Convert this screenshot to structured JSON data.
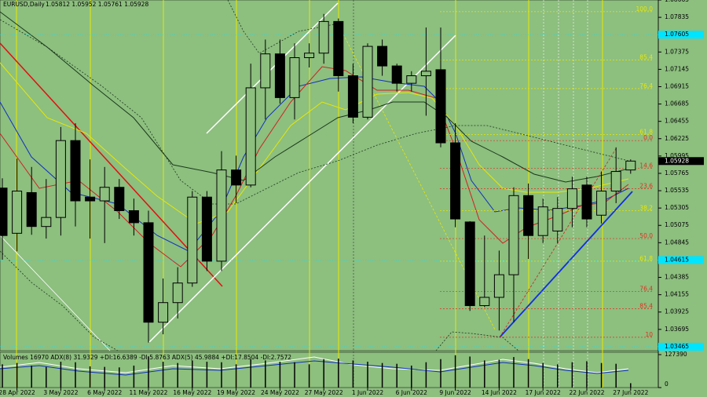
{
  "chart_data": {
    "type": "candlestick",
    "title": "EURUSD,Daily",
    "subtitle": "1.05812 1.05952 1.05761 1.05928",
    "categories": [
      "28 Apr 2022",
      "3 May 2022",
      "6 May 2022",
      "11 May 2022",
      "16 May 2022",
      "19 May 2022",
      "24 May 2022",
      "27 May 2022",
      "1 Jun 2022",
      "6 Jun 2022",
      "9 Jun 2022",
      "14 Jun 2022",
      "17 Jun 2022",
      "22 Jun 2022",
      "27 Jun 2022"
    ],
    "open": [
      1.0557,
      1.0497,
      1.0551,
      1.0506,
      1.0518,
      1.062,
      1.0545,
      1.054,
      1.0558,
      1.0527,
      1.0511,
      1.0379,
      1.0405,
      1.0431,
      1.0545,
      1.046,
      1.0581,
      1.0561,
      1.069,
      1.0735,
      1.0677,
      1.073,
      1.0736,
      1.0778,
      1.0706,
      1.0651,
      1.0745,
      1.0719,
      1.0696,
      1.0706,
      1.0714,
      1.0617,
      1.0512,
      1.0401,
      1.0412,
      1.0442,
      1.0547,
      1.0494,
      1.05,
      1.053,
      1.0561,
      1.0521,
      1.0553,
      1.0581
    ],
    "high": [
      1.057,
      1.0596,
      1.0585,
      1.0569,
      1.0638,
      1.0643,
      1.0595,
      1.0585,
      1.0569,
      1.0543,
      1.0527,
      1.0437,
      1.0452,
      1.0553,
      1.0553,
      1.0606,
      1.06,
      1.0722,
      1.0754,
      1.0754,
      1.0749,
      1.0749,
      1.0788,
      1.0782,
      1.0722,
      1.0749,
      1.0754,
      1.0722,
      1.0712,
      1.077,
      1.077,
      1.0643,
      1.0513,
      1.0494,
      1.0474,
      1.0558,
      1.0563,
      1.0543,
      1.0545,
      1.0572,
      1.0572,
      1.0579,
      1.0611,
      1.0595
    ],
    "low": [
      1.0462,
      1.0473,
      1.0495,
      1.049,
      1.0494,
      1.0506,
      1.049,
      1.0484,
      1.0516,
      1.0494,
      1.0352,
      1.0363,
      1.0384,
      1.0426,
      1.0447,
      1.0447,
      1.0537,
      1.0558,
      1.0648,
      1.0669,
      1.0648,
      1.0717,
      1.0722,
      1.0685,
      1.0643,
      1.0648,
      1.0706,
      1.0685,
      1.0685,
      1.0653,
      1.0611,
      1.0505,
      1.0394,
      1.0399,
      1.0368,
      1.0379,
      1.0463,
      1.0484,
      1.0484,
      1.0505,
      1.0505,
      1.051,
      1.0537,
      1.0576
    ],
    "close": [
      1.0494,
      1.0553,
      1.0506,
      1.0518,
      1.062,
      1.054,
      1.054,
      1.0558,
      1.0527,
      1.0511,
      1.0379,
      1.0405,
      1.0431,
      1.0545,
      1.046,
      1.0581,
      1.0561,
      1.069,
      1.0735,
      1.0677,
      1.073,
      1.0736,
      1.0778,
      1.0706,
      1.0651,
      1.0745,
      1.0719,
      1.0696,
      1.0706,
      1.0712,
      1.0617,
      1.0516,
      1.0401,
      1.0412,
      1.0442,
      1.0547,
      1.0494,
      1.0532,
      1.053,
      1.0556,
      1.0516,
      1.0553,
      1.0579,
      1.05928
    ],
    "up_color": "#8dbf7f",
    "down_color": "#000000",
    "ylim": [
      1.03412,
      1.08065
    ],
    "yticks": [
      1.08065,
      1.07835,
      1.07375,
      1.07145,
      1.06915,
      1.06685,
      1.06455,
      1.06225,
      1.05995,
      1.05765,
      1.05535,
      1.05305,
      1.05075,
      1.04845,
      1.04385,
      1.04155,
      1.03925,
      1.03695
    ],
    "price_markers": [
      {
        "value": 1.07605,
        "color": "#00e5ff"
      },
      {
        "value": 1.04615,
        "color": "#00e5ff"
      },
      {
        "value": 1.03465,
        "color": "#00e5ff"
      }
    ],
    "last_price": 1.05928,
    "annotations": [
      {
        "text": "100.0",
        "price": 1.0791,
        "color": "#e8e800"
      },
      {
        "text": "85.4",
        "price": 1.0727,
        "color": "#e8e800"
      },
      {
        "text": "76.4",
        "price": 1.0689,
        "color": "#e8e800"
      },
      {
        "text": "61.8",
        "price": 1.0628,
        "color": "#e8e800"
      },
      {
        "text": "0.0",
        "price": 1.062,
        "color": "#e03020"
      },
      {
        "text": "14.6",
        "price": 1.0583,
        "color": "#e03020"
      },
      {
        "text": "23.6",
        "price": 1.0556,
        "color": "#e03020"
      },
      {
        "text": "38.2",
        "price": 1.0527,
        "color": "#e8e800"
      },
      {
        "text": "50.0",
        "price": 1.049,
        "color": "#e03020"
      },
      {
        "text": "61.8",
        "price": 1.046,
        "color": "#e8e800"
      },
      {
        "text": "76.4",
        "price": 1.042,
        "color": "#e03020"
      },
      {
        "text": "85.4",
        "price": 1.0397,
        "color": "#e03020"
      },
      {
        "text": "10",
        "price": 1.0359,
        "color": "#e03020"
      }
    ],
    "volume_panel": {
      "label": "Volumes 16970  ADX(8) 31.9329 +DI:16.6389 -DI:5.8763  ADX(5) 45.9884 +DI:17.8504 -DI:2.7572",
      "values": [
        90000,
        95000,
        85000,
        80000,
        100000,
        98000,
        82000,
        80000,
        78000,
        85000,
        120000,
        100000,
        95000,
        105000,
        100000,
        98000,
        90000,
        110000,
        105000,
        100000,
        98000,
        90000,
        110000,
        112000,
        105000,
        100000,
        95000,
        92000,
        85000,
        98000,
        110000,
        125000,
        120000,
        105000,
        108000,
        118000,
        110000,
        95000,
        90000,
        98000,
        102000,
        95000,
        92000,
        16970
      ],
      "ylim": [
        0,
        127390
      ],
      "yticks": [
        127390,
        0
      ],
      "color": "#000000"
    }
  }
}
